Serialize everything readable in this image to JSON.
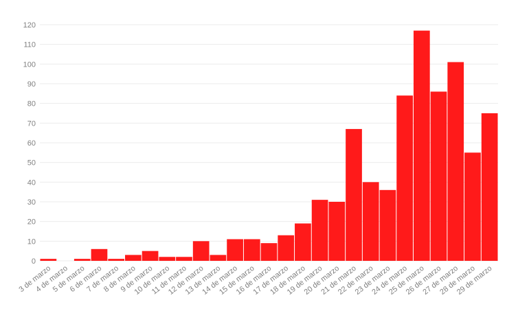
{
  "chart_data": {
    "type": "bar",
    "categories": [
      "3 de marzo",
      "4 de marzo",
      "5 de marzo",
      "6 de marzo",
      "7 de marzo",
      "8 de marzo",
      "9 de marzo",
      "10 de marzo",
      "11 de marzo",
      "12 de marzo",
      "13 de marzo",
      "14 de marzo",
      "15 de marzo",
      "16 de marzo",
      "17 de marzo",
      "18 de marzo",
      "19 de marzo",
      "20 de marzo",
      "21 de marzo",
      "22 de marzo",
      "23 de marzo",
      "24 de marzo",
      "25 de marzo",
      "26 de marzo",
      "27 de marzo",
      "28 de marzo",
      "29 de marzo"
    ],
    "values": [
      1,
      0,
      1,
      6,
      1,
      3,
      5,
      2,
      2,
      10,
      3,
      11,
      11,
      9,
      13,
      19,
      31,
      30,
      67,
      40,
      36,
      84,
      117,
      86,
      101,
      55,
      75
    ],
    "ylim": [
      0,
      120
    ],
    "yticks": [
      0,
      10,
      20,
      30,
      40,
      50,
      60,
      70,
      80,
      90,
      100,
      110,
      120
    ],
    "grid": true,
    "bar_color": "#ff1a1a",
    "grid_color": "#ebebeb",
    "title": "",
    "xlabel": "",
    "ylabel": ""
  }
}
